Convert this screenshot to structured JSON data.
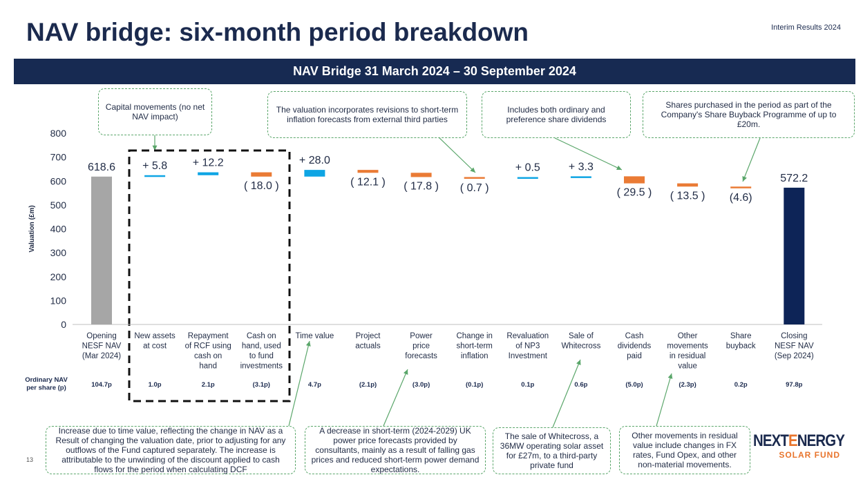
{
  "header": {
    "title": "NAV bridge: six-month period breakdown",
    "subtitle": "Interim Results 2024",
    "banner": "NAV Bridge 31 March 2024 – 30 September 2024"
  },
  "chart_data": {
    "type": "bar",
    "title": "NAV Bridge 31 March 2024 – 30 September 2024",
    "ylabel": "Valuation  (£m)",
    "ylim": [
      0,
      800
    ],
    "yticks": [
      0,
      100,
      200,
      300,
      400,
      500,
      600,
      700,
      800
    ],
    "grid": false,
    "colors": {
      "total_open": "#a6a6a6",
      "total_close": "#0d2457",
      "increase": "#0ea5e4",
      "decrease": "#ea7b35"
    },
    "categories": [
      "Opening NESF NAV (Mar 2024)",
      "New assets at cost",
      "Repayment of RCF using cash on hand",
      "Cash on hand, used to fund investments",
      "Time value",
      "Project actuals",
      "Power price forecasts",
      "Change in short-term inflation",
      "Revaluation of NP3 Investment",
      "Sale of Whitecross",
      "Cash dividends paid",
      "Other movements in residual value",
      "Share buyback",
      "Closing NESF NAV (Sep 2024)"
    ],
    "category_lines": [
      [
        "Opening",
        "NESF NAV",
        "(Mar 2024)"
      ],
      [
        "New assets",
        "at cost"
      ],
      [
        "Repayment",
        "of RCF using",
        "cash on",
        "hand"
      ],
      [
        "Cash on",
        "hand, used",
        "to fund",
        "investments"
      ],
      [
        "Time value"
      ],
      [
        "Project",
        "actuals"
      ],
      [
        "Power",
        "price",
        "forecasts"
      ],
      [
        "Change in",
        "short-term",
        "inflation"
      ],
      [
        "Revaluation",
        "of NP3",
        "Investment"
      ],
      [
        "Sale of",
        "Whitecross"
      ],
      [
        "Cash",
        "dividends",
        "paid"
      ],
      [
        "Other",
        "movements",
        "in residual",
        "value"
      ],
      [
        "Share",
        "buyback"
      ],
      [
        "Closing",
        "NESF NAV",
        "(Sep 2024)"
      ]
    ],
    "kinds": [
      "total",
      "increase",
      "increase",
      "decrease",
      "increase",
      "decrease",
      "decrease",
      "decrease",
      "increase",
      "increase",
      "decrease",
      "decrease",
      "decrease",
      "total"
    ],
    "values": [
      618.6,
      5.8,
      12.2,
      -18.0,
      28.0,
      -12.1,
      -17.8,
      -0.7,
      0.5,
      3.3,
      -29.5,
      -13.5,
      -4.6,
      572.2
    ],
    "data_labels": [
      "618.6",
      "+ 5.8",
      "+ 12.2",
      "( 18.0 )",
      "+ 28.0",
      "( 12.1 )",
      "( 17.8 )",
      "( 0.7 )",
      "+ 0.5",
      "+ 3.3",
      "( 29.5 )",
      "( 13.5 )",
      "(4.6)",
      "572.2"
    ],
    "per_share_label": [
      "Ordinary NAV",
      "per share (p)"
    ],
    "per_share_values": [
      "104.7p",
      "1.0p",
      "2.1p",
      "(3.1p)",
      "4.7p",
      "(2.1p)",
      "(3.0p)",
      "(0.1p)",
      "0.1p",
      "0.6p",
      "(5.0p)",
      "(2.3p)",
      "0.2p",
      "97.8p"
    ]
  },
  "callouts": {
    "capital": "Capital movements (no net NAV impact)",
    "valuation": "The valuation incorporates revisions to short-term inflation forecasts from external third parties",
    "dividends": "Includes both ordinary and preference share dividends",
    "buyback": "Shares purchased in the period as part of the Company's Share Buyback Programme of up to £20m.",
    "time_value": "Increase due to time value, reflecting the change in NAV as a Result of changing the valuation date, prior to adjusting for any outflows of the Fund captured separately. The increase is attributable to the unwinding of the discount applied to cash flows for the period when calculating DCF",
    "power": "A decrease in short-term (2024-2029) UK power price forecasts provided by consultants, mainly as a result of falling gas prices and reduced short-term power demand expectations.",
    "whitecross": "The sale of Whitecross, a 36MW operating solar asset for £27m, to a third-party private fund",
    "other": "Other movements in residual value include changes in FX rates, Fund Opex, and other non-material movements."
  },
  "footer": {
    "page_number": "13"
  },
  "logo": {
    "line1": "NEXTENERGY",
    "line2": "SOLAR FUND"
  }
}
